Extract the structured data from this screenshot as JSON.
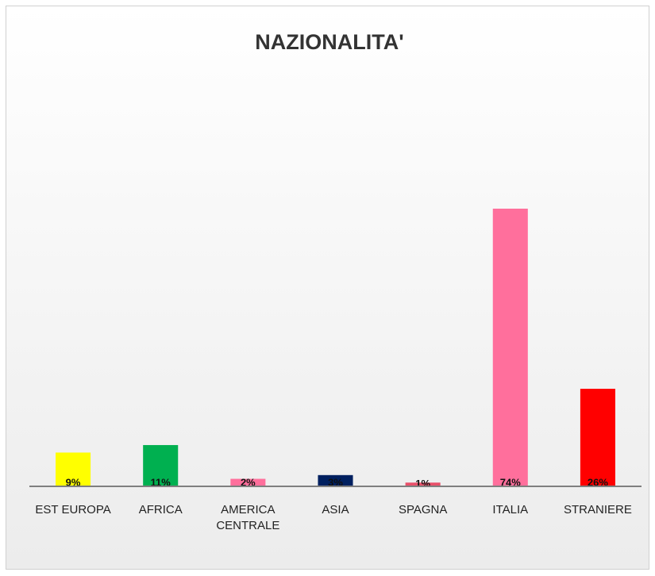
{
  "chart_data": {
    "type": "bar",
    "title": "NAZIONALITA'",
    "categories": [
      "EST EUROPA",
      "AFRICA",
      "AMERICA CENTRALE",
      "ASIA",
      "SPAGNA",
      "ITALIA",
      "STRANIERE"
    ],
    "values": [
      9,
      11,
      2,
      3,
      1,
      74,
      26
    ],
    "value_labels": [
      "9%",
      "11%",
      "2%",
      "3%",
      "1%",
      "74%",
      "26%"
    ],
    "colors": [
      "#ffff00",
      "#00b050",
      "#ff6f9c",
      "#002060",
      "#e8506a",
      "#ff6f9c",
      "#ff0000"
    ]
  }
}
